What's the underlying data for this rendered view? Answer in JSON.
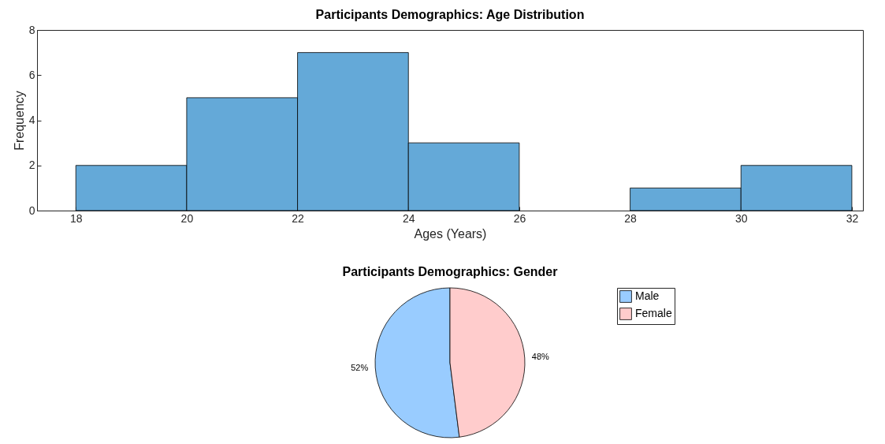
{
  "chart_data": [
    {
      "type": "histogram",
      "title": "Participants Demographics: Age Distribution",
      "xlabel": "Ages (Years)",
      "ylabel": "Frequency",
      "bins": [
        18,
        20,
        22,
        24,
        26,
        28,
        30,
        32
      ],
      "values": [
        2,
        5,
        7,
        3,
        0,
        1,
        2
      ],
      "color": "#64a9d8",
      "xlim": [
        17.3,
        32.2
      ],
      "xticks": [
        18,
        20,
        22,
        24,
        26,
        28,
        30,
        32
      ],
      "ylim": [
        0,
        8
      ],
      "yticks": [
        0,
        2,
        4,
        6,
        8
      ]
    },
    {
      "type": "pie",
      "title": "Participants Demographics: Gender",
      "categories": [
        "Male",
        "Female"
      ],
      "values": [
        52,
        48
      ],
      "colors": [
        "#99ccff",
        "#ffcccc"
      ],
      "value_labels": [
        "52%",
        "48%"
      ],
      "legend": "top right"
    }
  ]
}
